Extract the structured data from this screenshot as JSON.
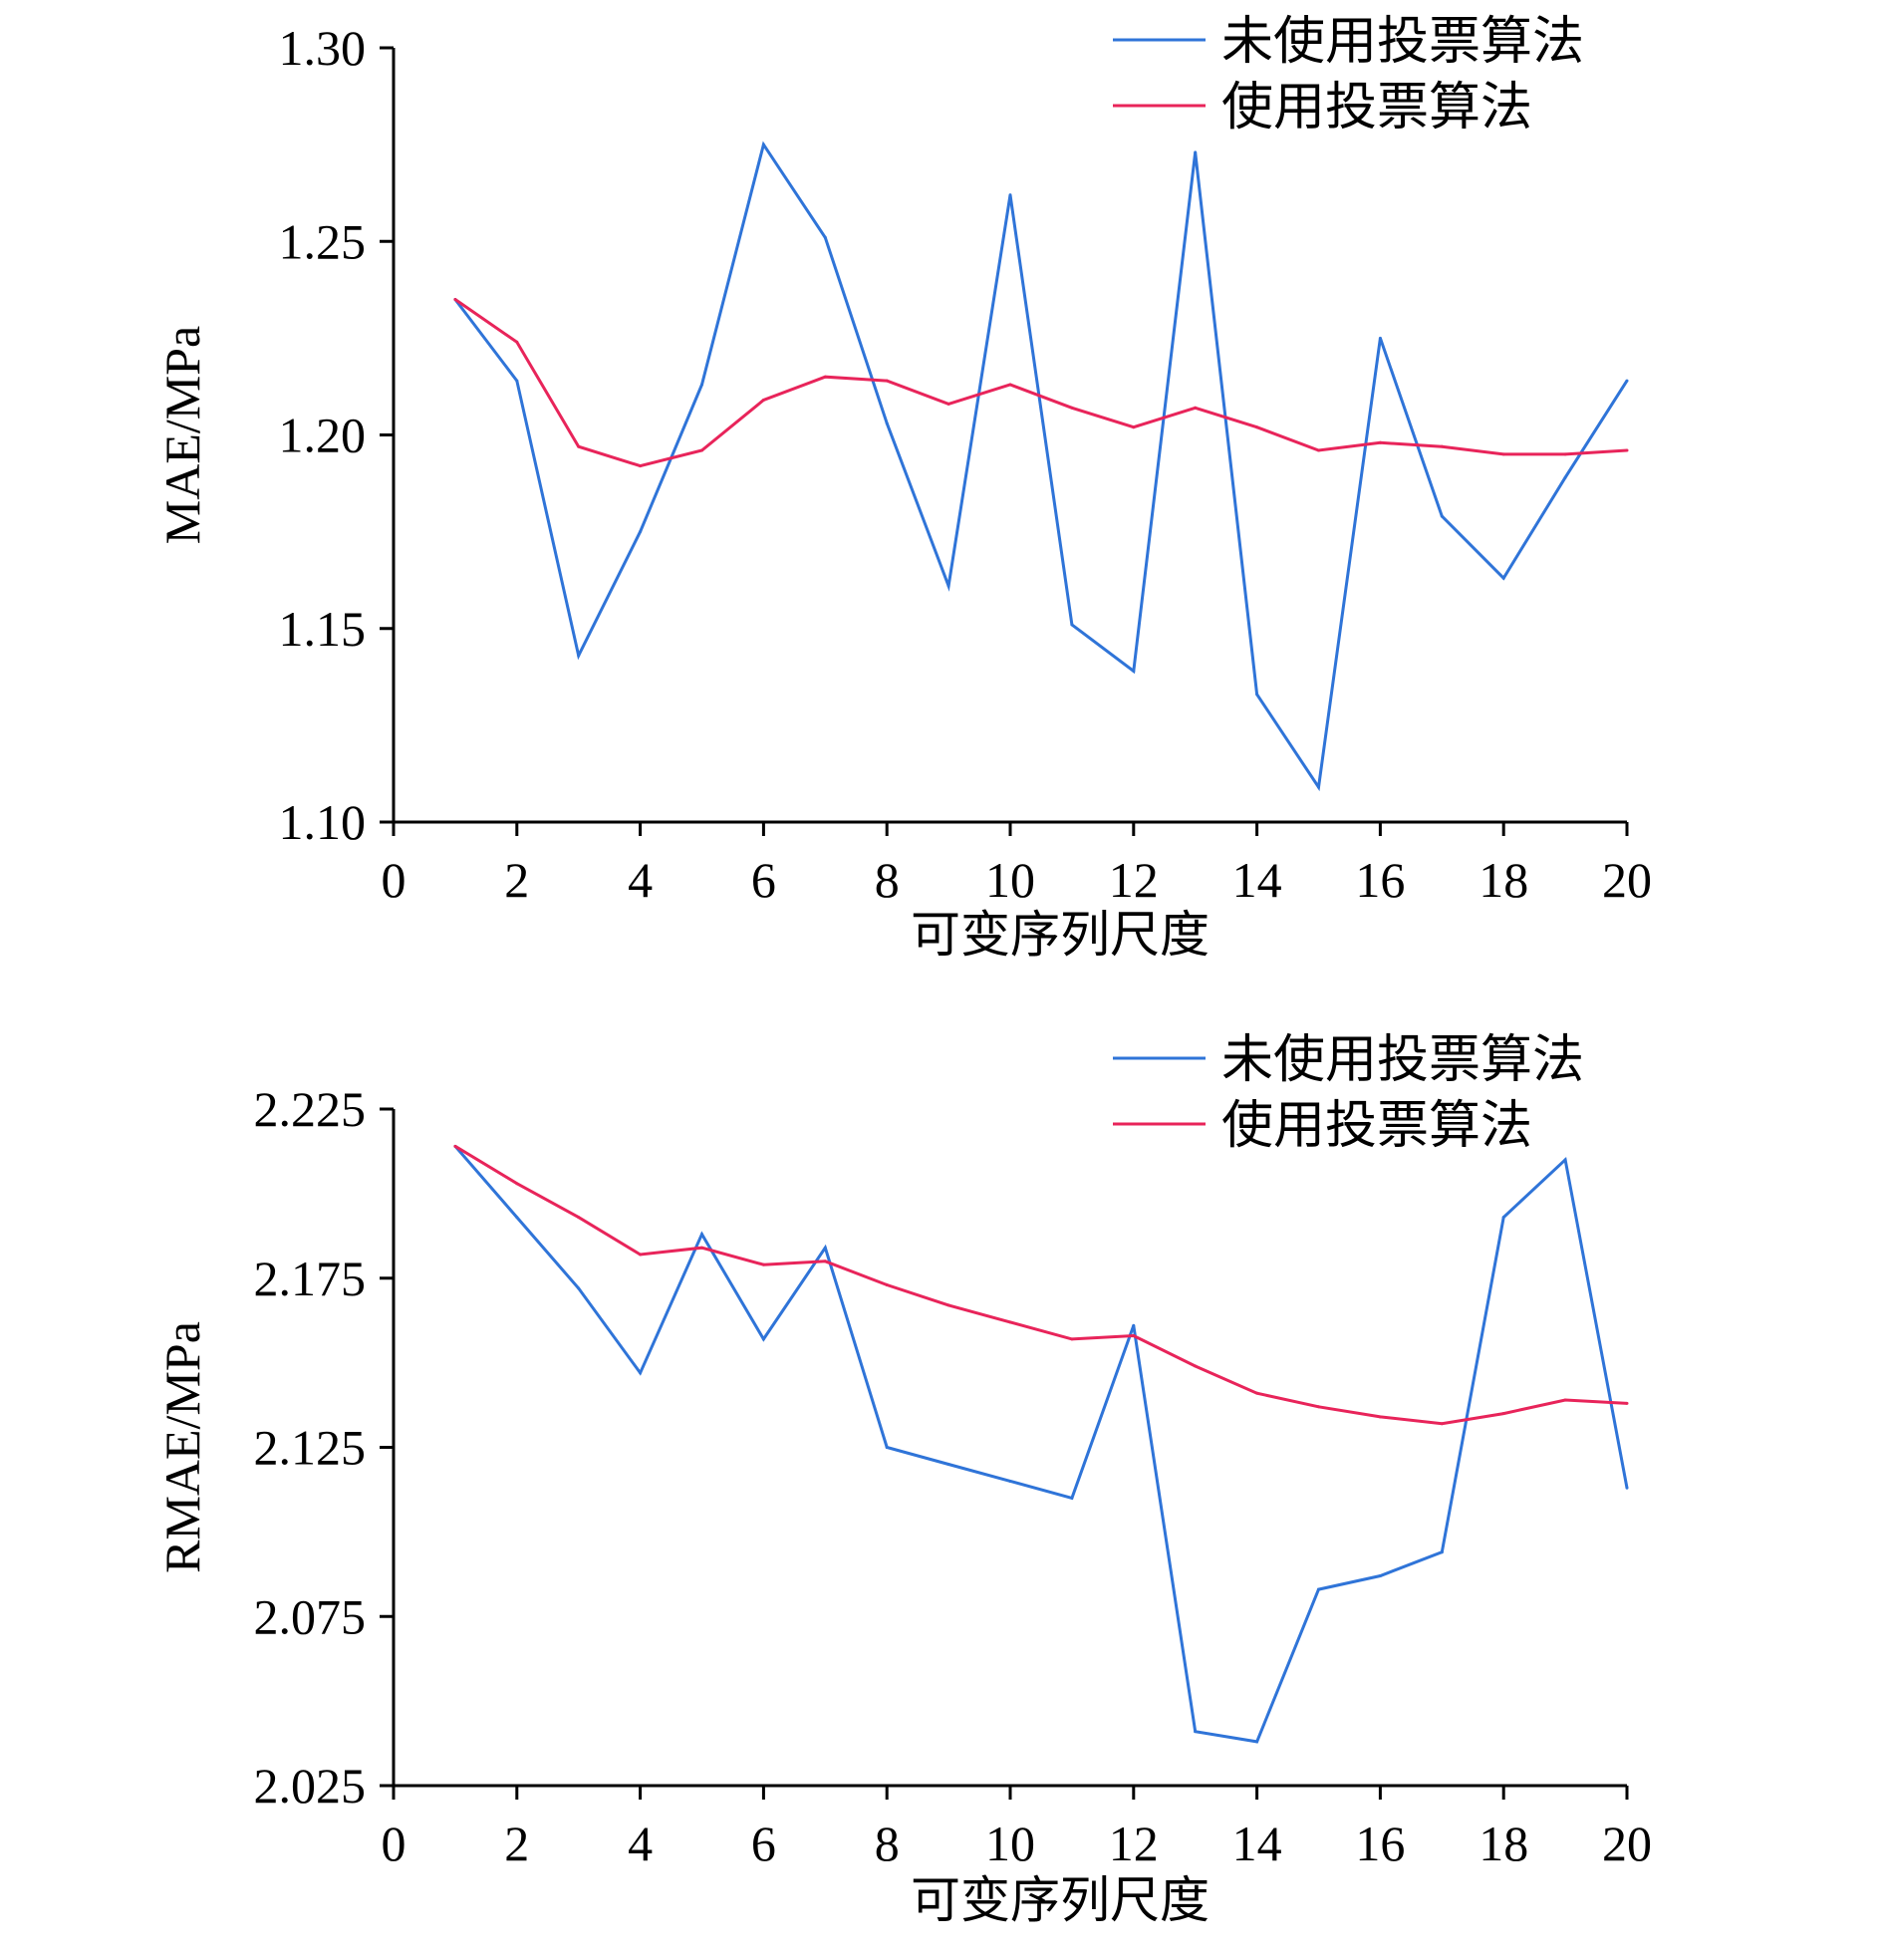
{
  "chart_data": [
    {
      "type": "line",
      "xlabel": "可变序列尺度",
      "ylabel": "MAE/MPa",
      "xlim": [
        0,
        20
      ],
      "ylim": [
        1.1,
        1.3
      ],
      "xticks": [
        "0",
        "2",
        "4",
        "6",
        "8",
        "10",
        "12",
        "14",
        "16",
        "18",
        "20"
      ],
      "yticks": [
        "1.10",
        "1.15",
        "1.20",
        "1.25",
        "1.30"
      ],
      "legend_position": "top-right",
      "x": [
        1,
        2,
        3,
        4,
        5,
        6,
        7,
        8,
        9,
        10,
        11,
        12,
        13,
        14,
        15,
        16,
        17,
        18,
        19,
        20
      ],
      "series": [
        {
          "name": "未使用投票算法",
          "color": "#2f74d8",
          "values": [
            1.235,
            1.214,
            1.143,
            1.175,
            1.213,
            1.275,
            1.251,
            1.203,
            1.161,
            1.262,
            1.151,
            1.139,
            1.273,
            1.133,
            1.109,
            1.225,
            1.179,
            1.163,
            1.189,
            1.214
          ]
        },
        {
          "name": "使用投票算法",
          "color": "#e8245a",
          "values": [
            1.235,
            1.224,
            1.197,
            1.192,
            1.196,
            1.209,
            1.215,
            1.214,
            1.208,
            1.213,
            1.207,
            1.202,
            1.207,
            1.202,
            1.196,
            1.198,
            1.197,
            1.195,
            1.195,
            1.196
          ]
        }
      ]
    },
    {
      "type": "line",
      "xlabel": "可变序列尺度",
      "ylabel": "RMAE/MPa",
      "xlim": [
        0,
        20
      ],
      "ylim": [
        2.025,
        2.225
      ],
      "xticks": [
        "0",
        "2",
        "4",
        "6",
        "8",
        "10",
        "12",
        "14",
        "16",
        "18",
        "20"
      ],
      "yticks": [
        "2.025",
        "2.075",
        "2.125",
        "2.175",
        "2.225"
      ],
      "legend_position": "top-right",
      "x": [
        1,
        2,
        3,
        4,
        5,
        6,
        7,
        8,
        9,
        10,
        11,
        12,
        13,
        14,
        15,
        16,
        17,
        18,
        19,
        20
      ],
      "series": [
        {
          "name": "未使用投票算法",
          "color": "#2f74d8",
          "values": [
            2.214,
            2.193,
            2.172,
            2.147,
            2.188,
            2.157,
            2.184,
            2.125,
            2.12,
            2.115,
            2.11,
            2.161,
            2.041,
            2.038,
            2.083,
            2.087,
            2.094,
            2.193,
            2.21,
            2.113
          ]
        },
        {
          "name": "使用投票算法",
          "color": "#e8245a",
          "values": [
            2.214,
            2.203,
            2.193,
            2.182,
            2.184,
            2.179,
            2.18,
            2.173,
            2.167,
            2.162,
            2.157,
            2.158,
            2.149,
            2.141,
            2.137,
            2.134,
            2.132,
            2.135,
            2.139,
            2.138
          ]
        }
      ]
    }
  ]
}
